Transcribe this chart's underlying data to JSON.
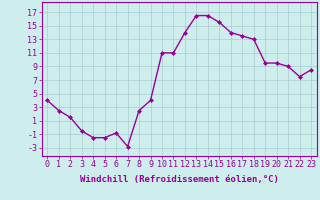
{
  "x": [
    0,
    1,
    2,
    3,
    4,
    5,
    6,
    7,
    8,
    9,
    10,
    11,
    12,
    13,
    14,
    15,
    16,
    17,
    18,
    19,
    20,
    21,
    22,
    23
  ],
  "y": [
    4.0,
    2.5,
    1.5,
    -0.5,
    -1.5,
    -1.5,
    -0.8,
    -2.8,
    2.5,
    4.0,
    11.0,
    11.0,
    14.0,
    16.5,
    16.5,
    15.5,
    14.0,
    13.5,
    13.0,
    9.5,
    9.5,
    9.0,
    7.5,
    8.5
  ],
  "line_color": "#990099",
  "marker": "D",
  "marker_size": 2.0,
  "bg_color": "#ceeeed",
  "grid_color": "#aacccc",
  "xlabel": "Windchill (Refroidissement éolien,°C)",
  "xlabel_fontsize": 6.5,
  "ylabel_ticks": [
    -3,
    -1,
    1,
    3,
    5,
    7,
    9,
    11,
    13,
    15,
    17
  ],
  "xtick_labels": [
    "0",
    "1",
    "2",
    "3",
    "4",
    "5",
    "6",
    "7",
    "8",
    "9",
    "10",
    "11",
    "12",
    "13",
    "14",
    "15",
    "16",
    "17",
    "18",
    "19",
    "20",
    "21",
    "22",
    "23"
  ],
  "ylim": [
    -4.2,
    18.5
  ],
  "xlim": [
    -0.5,
    23.5
  ],
  "tick_fontsize": 6.0,
  "line_width": 1.0
}
